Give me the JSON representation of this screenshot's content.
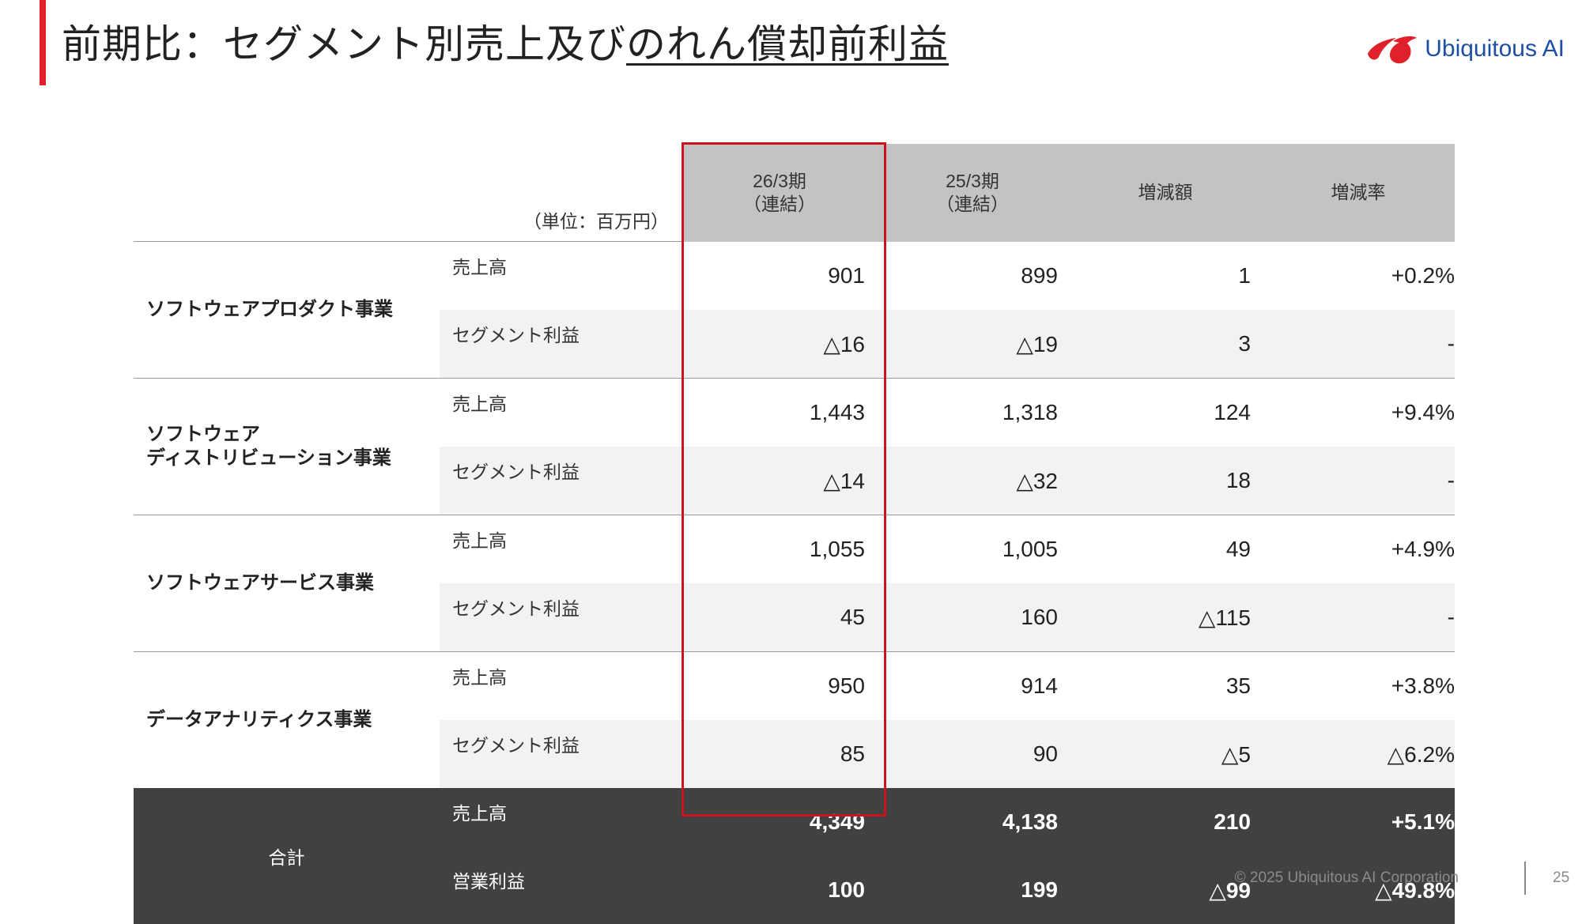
{
  "title": {
    "plain": "前期比：セグメント別売上及び",
    "underlined": "のれん償却前利益"
  },
  "logo": {
    "text": "Ubiquitous AI",
    "icon": "ubiquitous-logo-mark",
    "brand_color": "#e0202a",
    "text_color": "#1f4fa3"
  },
  "table": {
    "unit_label": "（単位：百万円）",
    "columns": [
      {
        "line1": "26/3期",
        "line2": "（連結）"
      },
      {
        "line1": "25/3期",
        "line2": "（連結）"
      },
      {
        "line1": "増減額",
        "line2": ""
      },
      {
        "line1": "増減率",
        "line2": ""
      }
    ],
    "segments": [
      {
        "name_lines": [
          "ソフトウェアプロダクト事業"
        ],
        "rows": [
          {
            "metric": "売上高",
            "values": [
              "901",
              "899",
              "1",
              "+0.2%"
            ]
          },
          {
            "metric": "セグメント利益",
            "values": [
              "△16",
              "△19",
              "3",
              "-"
            ]
          }
        ]
      },
      {
        "name_lines": [
          "ソフトウェア",
          "ディストリビューション事業"
        ],
        "rows": [
          {
            "metric": "売上高",
            "values": [
              "1,443",
              "1,318",
              "124",
              "+9.4%"
            ]
          },
          {
            "metric": "セグメント利益",
            "values": [
              "△14",
              "△32",
              "18",
              "-"
            ]
          }
        ]
      },
      {
        "name_lines": [
          "ソフトウェアサービス事業"
        ],
        "rows": [
          {
            "metric": "売上高",
            "values": [
              "1,055",
              "1,005",
              "49",
              "+4.9%"
            ]
          },
          {
            "metric": "セグメント利益",
            "values": [
              "45",
              "160",
              "△115",
              "-"
            ]
          }
        ]
      },
      {
        "name_lines": [
          "データアナリティクス事業"
        ],
        "rows": [
          {
            "metric": "売上高",
            "values": [
              "950",
              "914",
              "35",
              "+3.8%"
            ]
          },
          {
            "metric": "セグメント利益",
            "values": [
              "85",
              "90",
              "△5",
              "△6.2%"
            ]
          }
        ]
      }
    ],
    "total": {
      "label": "合計",
      "rows": [
        {
          "metric": "売上高",
          "values": [
            "4,349",
            "4,138",
            "210",
            "+5.1%"
          ]
        },
        {
          "metric": "営業利益",
          "values": [
            "100",
            "199",
            "△99",
            "△49.8%"
          ]
        }
      ]
    }
  },
  "footer": {
    "copyright": "© 2025 Ubiquitous AI Corporation",
    "page": "25"
  },
  "colors": {
    "accent": "#e0202a",
    "header_bg": "#c3c3c3",
    "total_bg": "#414141",
    "highlight": "#c8141e",
    "shade": "#f2f2f2"
  }
}
